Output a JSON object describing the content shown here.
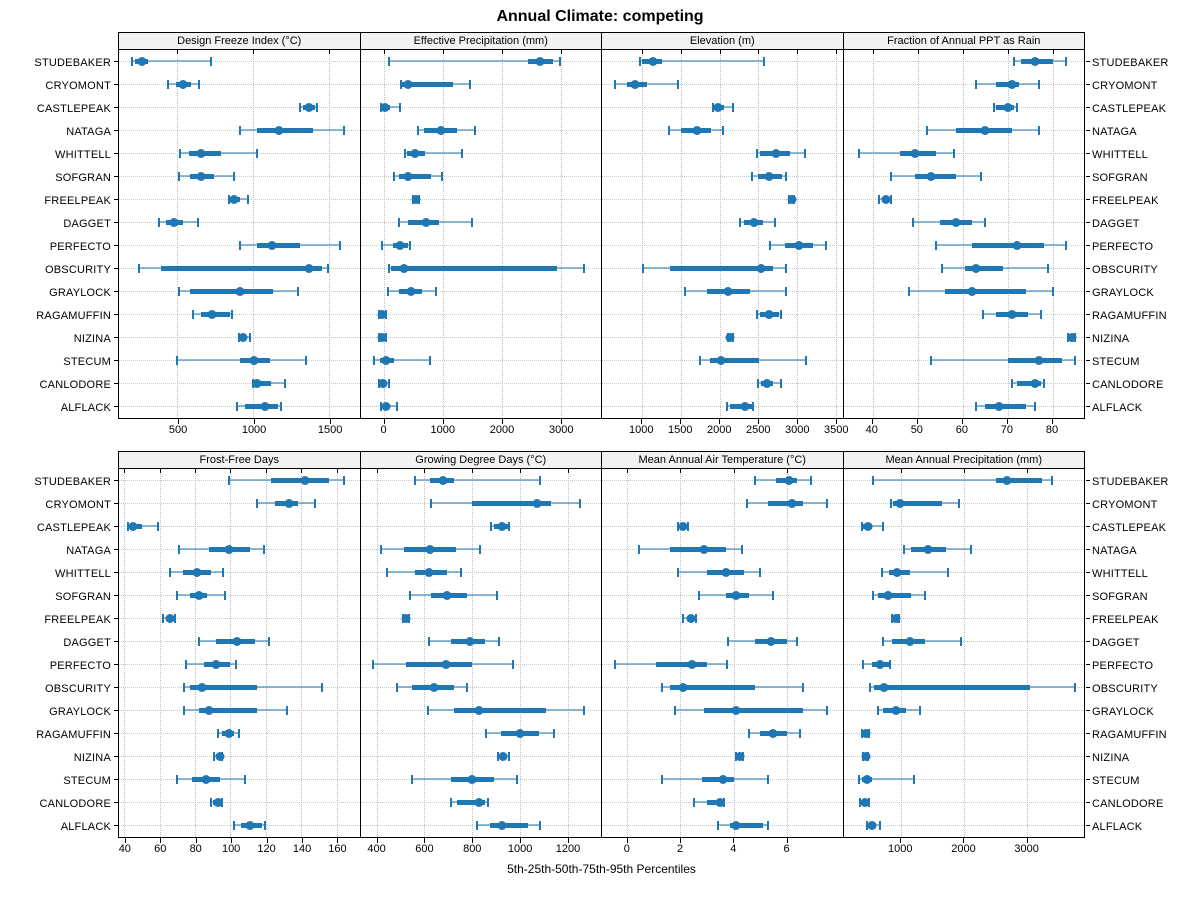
{
  "title": "Annual Climate: competing",
  "caption": "5th-25th-50th-75th-95th Percentiles",
  "accent_color": "#1f77b4",
  "whisker_line_color": "rgba(31,119,180,0.5)",
  "header_bg": "#f2f2f2",
  "sites": [
    "STUDEBAKER",
    "CRYOMONT",
    "CASTLEPEAK",
    "NATAGA",
    "WHITTELL",
    "SOFGRAN",
    "FREELPEAK",
    "DAGGET",
    "PERFECTO",
    "OBSCURITY",
    "GRAYLOCK",
    "RAGAMUFFIN",
    "NIZINA",
    "STECUM",
    "CANLODORE",
    "ALFLACK"
  ],
  "percentile_labels": [
    "5th",
    "25th",
    "50th",
    "75th",
    "95th"
  ],
  "chart_data": [
    {
      "type": "scatter",
      "title": "Design Freeze Index (°C)",
      "grid_row": "top",
      "xlim": [
        115,
        1700
      ],
      "ticks": [
        500,
        1000,
        1500
      ],
      "series": {
        "STUDEBAKER": [
          200,
          220,
          265,
          305,
          720
        ],
        "CRYOMONT": [
          435,
          490,
          540,
          590,
          640
        ],
        "CASTLEPEAK": [
          1310,
          1330,
          1370,
          1405,
          1420
        ],
        "NATAGA": [
          915,
          1025,
          1170,
          1395,
          1600
        ],
        "WHITTELL": [
          520,
          575,
          655,
          785,
          1025
        ],
        "SOFGRAN": [
          510,
          585,
          655,
          740,
          870
        ],
        "FREELPEAK": [
          840,
          848,
          870,
          915,
          965
        ],
        "DAGGET": [
          380,
          425,
          480,
          535,
          635
        ],
        "PERFECTO": [
          915,
          1025,
          1125,
          1310,
          1570
        ],
        "OBSCURITY": [
          245,
          390,
          1370,
          1455,
          1490
        ],
        "GRAYLOCK": [
          510,
          585,
          915,
          1130,
          1295
        ],
        "RAGAMUFFIN": [
          605,
          655,
          730,
          845,
          860
        ],
        "NIZINA": [
          905,
          915,
          930,
          950,
          980
        ],
        "STECUM": [
          500,
          915,
          1005,
          1110,
          1350
        ],
        "CANLODORE": [
          1000,
          1015,
          1025,
          1120,
          1210
        ],
        "ALFLACK": [
          890,
          945,
          1075,
          1160,
          1180
        ]
      }
    },
    {
      "type": "scatter",
      "title": "Effective Precipitation (mm)",
      "grid_row": "top",
      "xlim": [
        -390,
        3680
      ],
      "ticks": [
        0,
        1000,
        2000,
        3000
      ],
      "series": {
        "STUDEBAKER": [
          90,
          2450,
          2650,
          2870,
          2990
        ],
        "CRYOMONT": [
          290,
          315,
          420,
          1170,
          1470
        ],
        "CASTLEPEAK": [
          -40,
          -30,
          30,
          110,
          280
        ],
        "NATAGA": [
          590,
          690,
          965,
          1240,
          1555
        ],
        "WHITTELL": [
          355,
          395,
          535,
          710,
          1325
        ],
        "SOFGRAN": [
          180,
          265,
          420,
          810,
          990
        ],
        "FREELPEAK": [
          490,
          505,
          555,
          590,
          600
        ],
        "DAGGET": [
          255,
          420,
          710,
          935,
          1500
        ],
        "PERFECTO": [
          -20,
          155,
          280,
          420,
          445
        ],
        "OBSCURITY": [
          90,
          130,
          350,
          2935,
          3400
        ],
        "GRAYLOCK": [
          70,
          255,
          460,
          655,
          880
        ],
        "RAGAMUFFIN": [
          -85,
          -65,
          -20,
          30,
          45
        ],
        "NIZINA": [
          -80,
          -50,
          -20,
          20,
          45
        ],
        "STECUM": [
          -155,
          -55,
          35,
          180,
          780
        ],
        "CANLODORE": [
          -80,
          -55,
          -10,
          45,
          90
        ],
        "ALFLACK": [
          -35,
          -10,
          35,
          90,
          220
        ]
      }
    },
    {
      "type": "scatter",
      "title": "Elevation (m)",
      "grid_row": "top",
      "xlim": [
        490,
        3580
      ],
      "ticks": [
        1000,
        1500,
        2000,
        2500,
        3000,
        3500
      ],
      "series": {
        "STUDEBAKER": [
          980,
          1010,
          1140,
          1265,
          2575
        ],
        "CRYOMONT": [
          660,
          815,
          915,
          1070,
          1465
        ],
        "CASTLEPEAK": [
          1910,
          1925,
          1975,
          2060,
          2170
        ],
        "NATAGA": [
          1350,
          1500,
          1710,
          1895,
          2050
        ],
        "WHITTELL": [
          2480,
          2520,
          2725,
          2905,
          3095
        ],
        "SOFGRAN": [
          2415,
          2500,
          2630,
          2800,
          2860
        ],
        "FREELPEAK": [
          2895,
          2905,
          2925,
          2945,
          2955
        ],
        "DAGGET": [
          2265,
          2310,
          2445,
          2565,
          2710
        ],
        "PERFECTO": [
          2650,
          2840,
          3025,
          3195,
          3370
        ],
        "OBSCURITY": [
          1020,
          1370,
          2535,
          2690,
          2860
        ],
        "GRAYLOCK": [
          1560,
          1840,
          2105,
          2395,
          2855
        ],
        "RAGAMUFFIN": [
          2485,
          2520,
          2640,
          2770,
          2790
        ],
        "NIZINA": [
          2110,
          2120,
          2140,
          2165,
          2175
        ],
        "STECUM": [
          1745,
          1880,
          2020,
          2510,
          3115
        ],
        "CANLODORE": [
          2500,
          2530,
          2605,
          2690,
          2795
        ],
        "ALFLACK": [
          2095,
          2140,
          2330,
          2415,
          2430
        ]
      }
    },
    {
      "type": "scatter",
      "title": "Fraction of Annual PPT as Rain",
      "grid_row": "top",
      "xlim": [
        33.5,
        87
      ],
      "ticks": [
        40,
        50,
        60,
        70,
        80
      ],
      "series": {
        "STUDEBAKER": [
          71.5,
          73,
          76,
          80,
          83
        ],
        "CRYOMONT": [
          63,
          67.5,
          71,
          72.5,
          77
        ],
        "CASTLEPEAK": [
          67,
          67.5,
          70,
          71.5,
          72
        ],
        "NATAGA": [
          52,
          58.5,
          65,
          71,
          77
        ],
        "WHITTELL": [
          37,
          46,
          49.5,
          54,
          58
        ],
        "SOFGRAN": [
          44,
          49.5,
          53,
          58.5,
          64
        ],
        "FREELPEAK": [
          41.5,
          42,
          43,
          43.5,
          44
        ],
        "DAGGET": [
          49,
          55,
          58.5,
          62,
          65
        ],
        "PERFECTO": [
          54,
          62,
          72,
          78,
          83
        ],
        "OBSCURITY": [
          55.5,
          60.5,
          63,
          69,
          79
        ],
        "GRAYLOCK": [
          48,
          56,
          62,
          74,
          80
        ],
        "RAGAMUFFIN": [
          64.5,
          67.5,
          71,
          74.5,
          77.5
        ],
        "NIZINA": [
          83.5,
          84,
          84.3,
          84.6,
          85
        ],
        "STECUM": [
          53,
          70,
          77,
          82,
          85
        ],
        "CANLODORE": [
          71,
          72,
          76,
          77.5,
          78.2
        ],
        "ALFLACK": [
          63,
          65,
          68,
          74,
          76
        ]
      }
    },
    {
      "type": "scatter",
      "title": "Frost-Free Days",
      "grid_row": "bottom",
      "xlim": [
        37,
        173
      ],
      "ticks": [
        40,
        60,
        80,
        100,
        120,
        140,
        160
      ],
      "series": {
        "STUDEBAKER": [
          99,
          123,
          142,
          156,
          164
        ],
        "CRYOMONT": [
          115,
          125,
          133,
          138,
          148
        ],
        "CASTLEPEAK": [
          42,
          43,
          45,
          50,
          59
        ],
        "NATAGA": [
          71,
          88,
          99,
          111,
          119
        ],
        "WHITTELL": [
          66,
          73,
          81,
          89,
          96
        ],
        "SOFGRAN": [
          70,
          77,
          82,
          87,
          97
        ],
        "FREELPEAK": [
          62,
          64,
          66,
          68,
          68.5
        ],
        "DAGGET": [
          82,
          92,
          104,
          114,
          122
        ],
        "PERFECTO": [
          75,
          85,
          92,
          100,
          103
        ],
        "OBSCURITY": [
          74,
          77,
          84,
          115,
          152
        ],
        "GRAYLOCK": [
          74,
          82,
          88,
          115,
          132
        ],
        "RAGAMUFFIN": [
          93,
          95,
          99,
          102,
          105
        ],
        "NIZINA": [
          91,
          92,
          94,
          95,
          95.5
        ],
        "STECUM": [
          70,
          78,
          86,
          94,
          108
        ],
        "CANLODORE": [
          89,
          90,
          93,
          94,
          95
        ],
        "ALFLACK": [
          102,
          106,
          111,
          118,
          119.5
        ]
      }
    },
    {
      "type": "scatter",
      "title": "Growing Degree Days (°C)",
      "grid_row": "bottom",
      "xlim": [
        333,
        1340
      ],
      "ticks": [
        400,
        600,
        800,
        1000,
        1200
      ],
      "series": {
        "STUDEBAKER": [
          560,
          625,
          680,
          725,
          1085
        ],
        "CRYOMONT": [
          630,
          800,
          1070,
          1130,
          1250
        ],
        "CASTLEPEAK": [
          880,
          890,
          925,
          950,
          955
        ],
        "NATAGA": [
          420,
          515,
          625,
          735,
          835
        ],
        "WHITTELL": [
          445,
          560,
          620,
          695,
          755
        ],
        "SOFGRAN": [
          540,
          630,
          695,
          780,
          905
        ],
        "FREELPEAK": [
          512,
          516,
          522,
          530,
          537
        ],
        "DAGGET": [
          620,
          710,
          790,
          855,
          915
        ],
        "PERFECTO": [
          385,
          525,
          690,
          800,
          970
        ],
        "OBSCURITY": [
          485,
          550,
          640,
          725,
          780
        ],
        "GRAYLOCK": [
          615,
          725,
          830,
          1110,
          1270
        ],
        "RAGAMUFFIN": [
          860,
          920,
          1000,
          1080,
          1145
        ],
        "NIZINA": [
          910,
          920,
          930,
          945,
          955
        ],
        "STECUM": [
          550,
          710,
          800,
          890,
          990
        ],
        "CANLODORE": [
          710,
          735,
          830,
          855,
          865
        ],
        "ALFLACK": [
          820,
          875,
          925,
          1035,
          1085
        ]
      }
    },
    {
      "type": "scatter",
      "title": "Mean Annual Air Temperature (°C)",
      "grid_row": "bottom",
      "xlim": [
        -0.95,
        8.1
      ],
      "ticks": [
        0,
        2,
        4,
        6
      ],
      "series": {
        "STUDEBAKER": [
          4.8,
          5.6,
          6.1,
          6.4,
          6.9
        ],
        "CRYOMONT": [
          4.5,
          5.3,
          6.2,
          6.6,
          7.5
        ],
        "CASTLEPEAK": [
          1.9,
          2.0,
          2.1,
          2.2,
          2.3
        ],
        "NATAGA": [
          0.45,
          1.6,
          2.9,
          3.7,
          4.3
        ],
        "WHITTELL": [
          1.9,
          3.0,
          3.7,
          4.4,
          5.0
        ],
        "SOFGRAN": [
          2.7,
          3.7,
          4.1,
          4.6,
          5.5
        ],
        "FREELPEAK": [
          2.1,
          2.25,
          2.4,
          2.5,
          2.6
        ],
        "DAGGET": [
          3.8,
          4.8,
          5.4,
          6.0,
          6.4
        ],
        "PERFECTO": [
          -0.45,
          1.1,
          2.45,
          3.0,
          3.75
        ],
        "OBSCURITY": [
          1.3,
          1.6,
          2.1,
          4.8,
          6.6
        ],
        "GRAYLOCK": [
          1.8,
          2.9,
          4.1,
          6.6,
          7.5
        ],
        "RAGAMUFFIN": [
          4.6,
          5.0,
          5.5,
          6.0,
          6.5
        ],
        "NIZINA": [
          4.1,
          4.15,
          4.25,
          4.3,
          4.35
        ],
        "STECUM": [
          1.3,
          2.8,
          3.6,
          4.0,
          5.3
        ],
        "CANLODORE": [
          2.5,
          3.0,
          3.5,
          3.6,
          3.65
        ],
        "ALFLACK": [
          3.4,
          3.85,
          4.1,
          5.1,
          5.3
        ]
      }
    },
    {
      "type": "scatter",
      "title": "Mean Annual Precipitation (mm)",
      "grid_row": "bottom",
      "xlim": [
        85,
        3900
      ],
      "ticks": [
        1000,
        2000,
        3000
      ],
      "series": {
        "STUDEBAKER": [
          555,
          2500,
          2675,
          3230,
          3390
        ],
        "CRYOMONT": [
          840,
          875,
          975,
          1640,
          1925
        ],
        "CASTLEPEAK": [
          375,
          395,
          480,
          535,
          715
        ],
        "NATAGA": [
          1040,
          1160,
          1430,
          1710,
          2105
        ],
        "WHITTELL": [
          695,
          800,
          930,
          1135,
          1750
        ],
        "SOFGRAN": [
          555,
          640,
          785,
          1160,
          1375
        ],
        "FREELPEAK": [
          850,
          870,
          910,
          945,
          965
        ],
        "DAGGET": [
          705,
          855,
          1145,
          1375,
          1945
        ],
        "PERFECTO": [
          395,
          535,
          665,
          810,
          825
        ],
        "OBSCURITY": [
          505,
          570,
          735,
          3050,
          3765
        ],
        "GRAYLOCK": [
          625,
          715,
          920,
          1080,
          1305
        ],
        "RAGAMUFFIN": [
          385,
          410,
          440,
          470,
          490
        ],
        "NIZINA": [
          400,
          420,
          440,
          460,
          475
        ],
        "STECUM": [
          330,
          375,
          450,
          535,
          1200
        ],
        "CANLODORE": [
          345,
          390,
          430,
          470,
          490
        ],
        "ALFLACK": [
          450,
          480,
          535,
          600,
          665
        ]
      }
    }
  ]
}
